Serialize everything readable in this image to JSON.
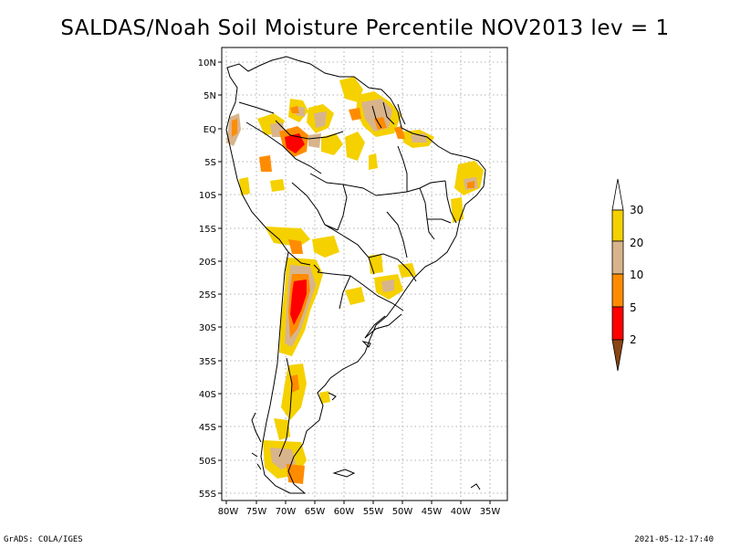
{
  "title": "SALDAS/Noah Soil Moisture Percentile NOV2013 lev = 1",
  "footer": {
    "left": "GrADS: COLA/IGES",
    "right": "2021-05-12-17:40"
  },
  "map": {
    "lat_ticks": [
      "10N",
      "5N",
      "EQ",
      "5S",
      "10S",
      "15S",
      "20S",
      "25S",
      "30S",
      "35S",
      "40S",
      "45S",
      "50S",
      "55S"
    ],
    "lon_ticks": [
      "80W",
      "75W",
      "70W",
      "65W",
      "60W",
      "55W",
      "50W",
      "45W",
      "40W",
      "35W"
    ],
    "lon_range": [
      -80,
      -33
    ],
    "lat_range": [
      -56,
      11
    ],
    "grid": true
  },
  "colorbar": {
    "labels": [
      "30",
      "20",
      "10",
      "5",
      "2"
    ],
    "colors": {
      "gt30": "#ffffff",
      "20_30": "#f5d100",
      "10_20": "#d8b48c",
      "5_10": "#ff8c00",
      "2_5": "#ff0000",
      "lt2": "#8b4513"
    }
  }
}
